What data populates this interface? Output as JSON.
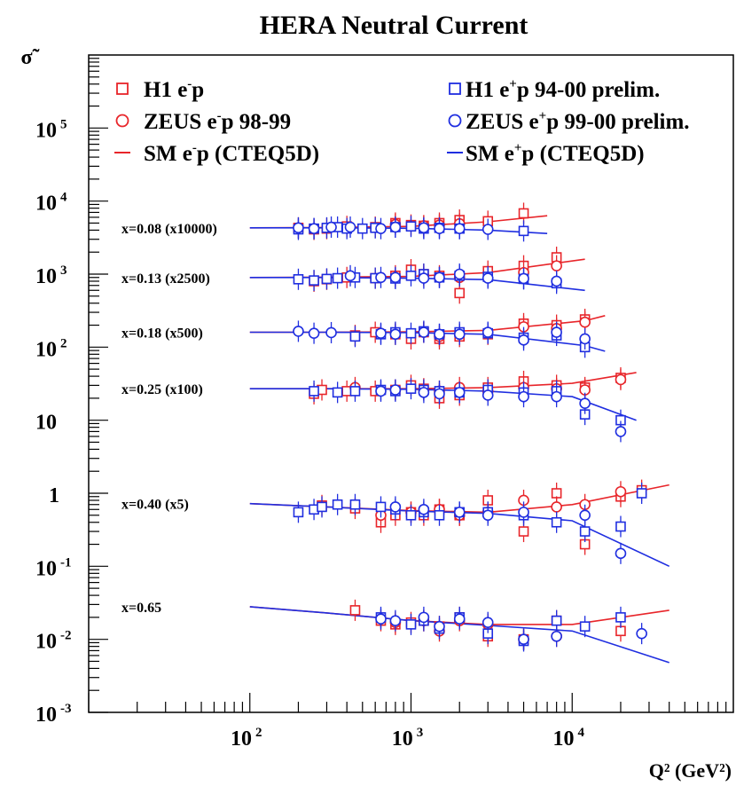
{
  "chart_data": {
    "type": "scatter",
    "title": "HERA Neutral Current",
    "ylabel": "σ̃",
    "xlabel": "Q² (GeV²)",
    "xscale": "log",
    "yscale": "log",
    "xlim": [
      10,
      100000
    ],
    "ylim": [
      0.001,
      1000000
    ],
    "x_tick_labels": [
      {
        "base": "10",
        "exp": "2"
      },
      {
        "base": "10",
        "exp": "3"
      },
      {
        "base": "10",
        "exp": "4"
      }
    ],
    "y_tick_labels": [
      {
        "base": "10",
        "exp": "5"
      },
      {
        "base": "10",
        "exp": "4"
      },
      {
        "base": "10",
        "exp": "3"
      },
      {
        "base": "10",
        "exp": "2"
      },
      {
        "base": "10",
        "exp": ""
      },
      {
        "base": "1",
        "exp": ""
      },
      {
        "base": "10",
        "exp": "-1"
      },
      {
        "base": "10",
        "exp": "-2"
      },
      {
        "base": "10",
        "exp": "-3"
      }
    ],
    "legend": [
      {
        "label_main": "H1 e",
        "label_sup": "-",
        "label_rest": "p",
        "color": "#e8252a",
        "marker": "square"
      },
      {
        "label_main": "ZEUS e",
        "label_sup": "-",
        "label_rest": "p 98-99",
        "color": "#e8252a",
        "marker": "circle"
      },
      {
        "label_main": "SM e",
        "label_sup": "-",
        "label_rest": "p (CTEQ5D)",
        "color": "#e8252a",
        "marker": "line"
      },
      {
        "label_main": "H1 e",
        "label_sup": "+",
        "label_rest": "p 94-00 prelim.",
        "color": "#1f2ee0",
        "marker": "square"
      },
      {
        "label_main": "ZEUS e",
        "label_sup": "+",
        "label_rest": "p 99-00 prelim.",
        "color": "#1f2ee0",
        "marker": "circle"
      },
      {
        "label_main": "SM e",
        "label_sup": "+",
        "label_rest": "p (CTEQ5D)",
        "color": "#1f2ee0",
        "marker": "line"
      }
    ],
    "bands": [
      {
        "label": "x=0.08 (x10000)",
        "sm_em": {
          "x": [
            100,
            300,
            1000,
            3000,
            7000
          ],
          "y": [
            4300,
            4350,
            4500,
            5200,
            6300
          ]
        },
        "sm_ep": {
          "x": [
            100,
            300,
            1000,
            3000,
            7000
          ],
          "y": [
            4300,
            4300,
            4250,
            4000,
            3600
          ]
        },
        "h1_em": {
          "x": [
            200,
            250,
            300,
            400,
            600,
            800,
            1000,
            1200,
            1500,
            2000,
            3000,
            5000
          ],
          "y": [
            4300,
            4100,
            4200,
            4500,
            4400,
            5000,
            4700,
            4600,
            5000,
            5500,
            5300,
            6800
          ]
        },
        "zeus_em": {
          "x": [
            800,
            1200,
            1500,
            2000
          ],
          "y": [
            4800,
            4600,
            4700,
            4900
          ]
        },
        "h1_ep": {
          "x": [
            200,
            250,
            300,
            350,
            400,
            500,
            600,
            800,
            1000,
            1200,
            1500,
            2000,
            5000
          ],
          "y": [
            4100,
            4200,
            4300,
            4400,
            4200,
            4200,
            4300,
            4400,
            4500,
            4200,
            4300,
            4200,
            3900
          ]
        },
        "zeus_ep": {
          "x": [
            200,
            250,
            320,
            420,
            650,
            800,
            1200,
            1500,
            2000,
            3000
          ],
          "y": [
            4300,
            4200,
            4400,
            4400,
            4200,
            4400,
            4300,
            4200,
            4200,
            4100
          ]
        }
      },
      {
        "label": "x=0.13 (x2500)",
        "sm_em": {
          "x": [
            100,
            300,
            1000,
            3000,
            12000
          ],
          "y": [
            900,
            910,
            930,
            1050,
            1600
          ]
        },
        "sm_ep": {
          "x": [
            100,
            300,
            1000,
            3000,
            12000
          ],
          "y": [
            900,
            900,
            880,
            840,
            600
          ]
        },
        "h1_em": {
          "x": [
            250,
            300,
            400,
            600,
            800,
            1000,
            1200,
            1500,
            2000,
            3000,
            5000,
            8000
          ],
          "y": [
            800,
            850,
            900,
            880,
            950,
            1150,
            1000,
            950,
            550,
            1100,
            1300,
            1700
          ]
        },
        "zeus_em": {
          "x": [
            800,
            1200,
            2000,
            5000,
            8000
          ],
          "y": [
            900,
            950,
            900,
            1050,
            1300
          ]
        },
        "h1_ep": {
          "x": [
            200,
            250,
            300,
            350,
            450,
            600,
            800,
            1000,
            1200,
            1500,
            2000,
            3000,
            5000,
            8000
          ],
          "y": [
            850,
            820,
            860,
            880,
            900,
            880,
            870,
            950,
            1000,
            900,
            950,
            920,
            860,
            750
          ]
        },
        "zeus_ep": {
          "x": [
            420,
            650,
            800,
            1200,
            1500,
            2000,
            3000,
            5000,
            8000
          ],
          "y": [
            950,
            900,
            900,
            880,
            900,
            1000,
            880,
            870,
            800
          ]
        }
      },
      {
        "label": "x=0.18 (x500)",
        "sm_em": {
          "x": [
            100,
            300,
            1000,
            3000,
            12000,
            16000
          ],
          "y": [
            160,
            160,
            162,
            170,
            230,
            270
          ]
        },
        "sm_ep": {
          "x": [
            100,
            300,
            1000,
            3000,
            12000,
            16000
          ],
          "y": [
            160,
            160,
            158,
            150,
            105,
            88
          ]
        },
        "h1_em": {
          "x": [
            450,
            600,
            800,
            1000,
            1200,
            1500,
            2000,
            3000,
            5000,
            8000,
            12000
          ],
          "y": [
            145,
            160,
            150,
            130,
            160,
            130,
            140,
            150,
            210,
            200,
            240
          ]
        },
        "zeus_em": {
          "x": [
            800,
            1200,
            1500,
            2000,
            5000,
            8000,
            12000
          ],
          "y": [
            155,
            160,
            140,
            150,
            190,
            180,
            220
          ]
        },
        "h1_ep": {
          "x": [
            450,
            650,
            800,
            1000,
            1200,
            1500,
            2000,
            3000,
            5000,
            8000,
            12000
          ],
          "y": [
            140,
            150,
            160,
            155,
            165,
            150,
            160,
            155,
            135,
            145,
            100
          ]
        },
        "zeus_ep": {
          "x": [
            200,
            250,
            320,
            650,
            800,
            1200,
            1500,
            2000,
            3000,
            5000,
            8000,
            12000
          ],
          "y": [
            165,
            155,
            158,
            155,
            150,
            160,
            150,
            150,
            160,
            125,
            160,
            130
          ]
        }
      },
      {
        "label": "x=0.25 (x100)",
        "sm_em": {
          "x": [
            100,
            300,
            1000,
            3000,
            10000,
            25000
          ],
          "y": [
            27,
            27,
            27,
            28,
            32,
            45
          ]
        },
        "sm_ep": {
          "x": [
            100,
            300,
            1000,
            3000,
            10000,
            25000
          ],
          "y": [
            27,
            27,
            26.5,
            25,
            21,
            10
          ]
        },
        "h1_em": {
          "x": [
            250,
            280,
            400,
            600,
            800,
            1000,
            1200,
            1500,
            2000,
            3000,
            5000,
            8000,
            12000,
            20000
          ],
          "y": [
            23,
            26,
            25,
            25,
            26,
            30,
            27,
            20,
            22,
            28,
            34,
            30,
            28,
            38
          ]
        },
        "zeus_em": {
          "x": [
            450,
            800,
            1200,
            1500,
            2000,
            3000,
            5000,
            8000,
            12000,
            20000
          ],
          "y": [
            28,
            26,
            26,
            25,
            28,
            25,
            28,
            27,
            26,
            36
          ]
        },
        "h1_ep": {
          "x": [
            250,
            350,
            450,
            650,
            800,
            1000,
            1200,
            1500,
            2000,
            3000,
            5000,
            8000,
            12000,
            20000
          ],
          "y": [
            25,
            24,
            25,
            26,
            25,
            27,
            26,
            25,
            24,
            26,
            24,
            25,
            12,
            10
          ]
        },
        "zeus_ep": {
          "x": [
            650,
            800,
            1200,
            1500,
            2000,
            3000,
            5000,
            8000,
            12000,
            20000
          ],
          "y": [
            25,
            26,
            24,
            23,
            24,
            22,
            21,
            21,
            17,
            7
          ]
        }
      },
      {
        "label": "x=0.40 (x5)",
        "sm_em": {
          "x": [
            100,
            300,
            1000,
            3000,
            10000,
            40000
          ],
          "y": [
            0.72,
            0.65,
            0.58,
            0.55,
            0.7,
            1.3
          ]
        },
        "sm_ep": {
          "x": [
            100,
            300,
            1000,
            3000,
            10000,
            40000
          ],
          "y": [
            0.72,
            0.65,
            0.57,
            0.53,
            0.42,
            0.1
          ]
        },
        "h1_em": {
          "x": [
            280,
            450,
            650,
            800,
            1000,
            1200,
            1500,
            2000,
            3000,
            5000,
            8000,
            12000,
            20000,
            27000
          ],
          "y": [
            0.68,
            0.62,
            0.4,
            0.5,
            0.55,
            0.5,
            0.6,
            0.5,
            0.8,
            0.3,
            1.0,
            0.2,
            0.9,
            1.1
          ]
        },
        "zeus_em": {
          "x": [
            650,
            1000,
            1500,
            2000,
            3000,
            5000,
            8000,
            12000,
            20000
          ],
          "y": [
            0.5,
            0.55,
            0.6,
            0.5,
            0.55,
            0.8,
            0.65,
            0.7,
            1.05
          ]
        },
        "h1_ep": {
          "x": [
            200,
            250,
            280,
            350,
            450,
            650,
            800,
            1000,
            1200,
            1500,
            2000,
            3000,
            5000,
            8000,
            12000,
            20000,
            27000
          ],
          "y": [
            0.55,
            0.6,
            0.65,
            0.7,
            0.7,
            0.65,
            0.6,
            0.5,
            0.55,
            0.5,
            0.55,
            0.55,
            0.5,
            0.4,
            0.3,
            0.35,
            1.0
          ]
        },
        "zeus_ep": {
          "x": [
            800,
            1200,
            2000,
            3000,
            5000,
            12000,
            20000,
            27000
          ],
          "y": [
            0.65,
            0.6,
            0.55,
            0.5,
            0.55,
            0.5,
            0.15,
            0.012
          ]
        }
      },
      {
        "label": "x=0.65",
        "sm_em": {
          "x": [
            100,
            300,
            1000,
            3000,
            10000,
            40000
          ],
          "y": [
            0.028,
            0.023,
            0.018,
            0.016,
            0.016,
            0.025
          ]
        },
        "sm_ep": {
          "x": [
            100,
            300,
            1000,
            3000,
            10000,
            40000
          ],
          "y": [
            0.028,
            0.023,
            0.018,
            0.0155,
            0.013,
            0.0048
          ]
        },
        "h1_em": {
          "x": [
            450,
            650,
            800,
            1000,
            1200,
            1500,
            2000,
            3000,
            5000,
            8000,
            20000
          ],
          "y": [
            0.025,
            0.018,
            0.016,
            0.017,
            0.018,
            0.015,
            0.02,
            0.011,
            0.01,
            0.018,
            0.013
          ]
        },
        "zeus_em": {
          "x": [
            800,
            1200,
            1500,
            2000,
            3000,
            5000,
            8000
          ],
          "y": [
            0.017,
            0.018,
            0.013,
            0.018,
            0.016,
            0.01,
            0.011
          ]
        },
        "h1_ep": {
          "x": [
            650,
            1000,
            1200,
            1500,
            2000,
            3000,
            5000,
            8000,
            12000,
            20000
          ],
          "y": [
            0.02,
            0.016,
            0.018,
            0.014,
            0.02,
            0.012,
            0.0095,
            0.018,
            0.015,
            0.02
          ]
        },
        "zeus_ep": {
          "x": [
            650,
            800,
            1200,
            1500,
            2000,
            3000,
            5000,
            8000
          ],
          "y": [
            0.019,
            0.018,
            0.02,
            0.015,
            0.019,
            0.017,
            0.01,
            0.011
          ]
        }
      }
    ]
  },
  "colors": {
    "red": "#e8252a",
    "blue": "#1f2ee0"
  }
}
